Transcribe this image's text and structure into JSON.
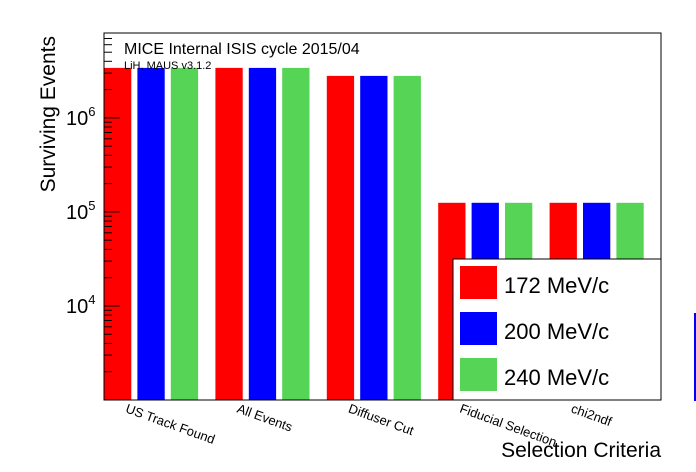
{
  "chart_data": {
    "type": "bar",
    "title": "MICE Internal ISIS cycle 2015/04",
    "subtitle": "LiH, MAUS v3.1.2",
    "xlabel": "Selection Criteria",
    "ylabel": "Surviving Events",
    "yscale": "log",
    "ylim": [
      1000,
      8000000
    ],
    "y_ticks": [
      {
        "value": 10000,
        "base": "10",
        "exp": "4"
      },
      {
        "value": 100000,
        "base": "10",
        "exp": "5"
      },
      {
        "value": 1000000,
        "base": "10",
        "exp": "6"
      }
    ],
    "categories": [
      "US Track Found",
      "All Events",
      "Diffuser Cut",
      "Fiducial Selection",
      "chi2ndf"
    ],
    "series": [
      {
        "name": "172 MeV/c",
        "color": "#ff0000",
        "values": [
          3400000,
          3400000,
          2800000,
          125000,
          125000
        ]
      },
      {
        "name": "200 MeV/c",
        "color": "#0000ff",
        "values": [
          3400000,
          3400000,
          2800000,
          125000,
          125000
        ]
      },
      {
        "name": "240 MeV/c",
        "color": "#55d455",
        "values": [
          3400000,
          3400000,
          2800000,
          125000,
          125000
        ]
      }
    ],
    "legend_position": "bottom-right",
    "grid": false
  }
}
